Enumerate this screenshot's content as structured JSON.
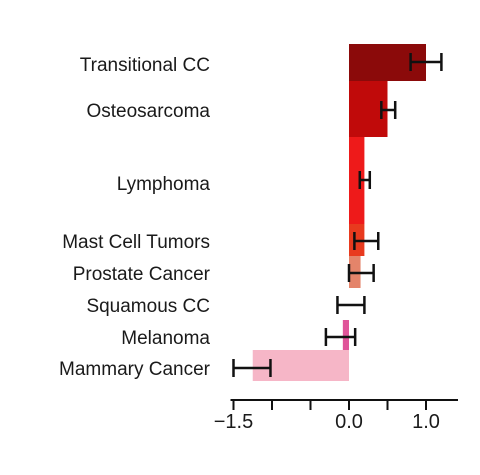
{
  "chart_data": {
    "type": "bar",
    "orientation": "horizontal",
    "title": "",
    "xlabel": "",
    "ylabel": "",
    "xlim": [
      -1.5,
      1.2
    ],
    "grid": false,
    "legend": "none",
    "bars": [
      {
        "category": "Transitional CC",
        "value": 1.0,
        "err_low": 0.8,
        "err_high": 1.2,
        "color": "#8b0a0a"
      },
      {
        "category": "Osteosarcoma",
        "value": 0.5,
        "err_low": 0.42,
        "err_high": 0.6,
        "color": "#c00a0a"
      },
      {
        "category": "Lymphoma",
        "value": 0.2,
        "err_low": 0.14,
        "err_high": 0.27,
        "color": "#ee1a1a"
      },
      {
        "category": "Mast Cell Tumors",
        "value": 0.2,
        "err_low": 0.07,
        "err_high": 0.38,
        "color": "#e83a1e"
      },
      {
        "category": "Prostate Cancer",
        "value": 0.15,
        "err_low": 0.0,
        "err_high": 0.32,
        "color": "#e4846a"
      },
      {
        "category": "Squamous CC",
        "value": 0.05,
        "err_low": -0.15,
        "err_high": 0.2,
        "color": "#ffffff"
      },
      {
        "category": "Melanoma",
        "value": -0.08,
        "err_low": -0.3,
        "err_high": 0.08,
        "color": "#e0559a"
      },
      {
        "category": "Mammary Cancer",
        "value": -1.25,
        "err_low": -1.5,
        "err_high": -1.02,
        "color": "#f6b6c7"
      }
    ],
    "x_ticks": [
      {
        "value": -1.5,
        "label": "−1.5"
      },
      {
        "value": 0.0,
        "label": "0.0"
      },
      {
        "value": 1.0,
        "label": "1.0"
      }
    ]
  }
}
